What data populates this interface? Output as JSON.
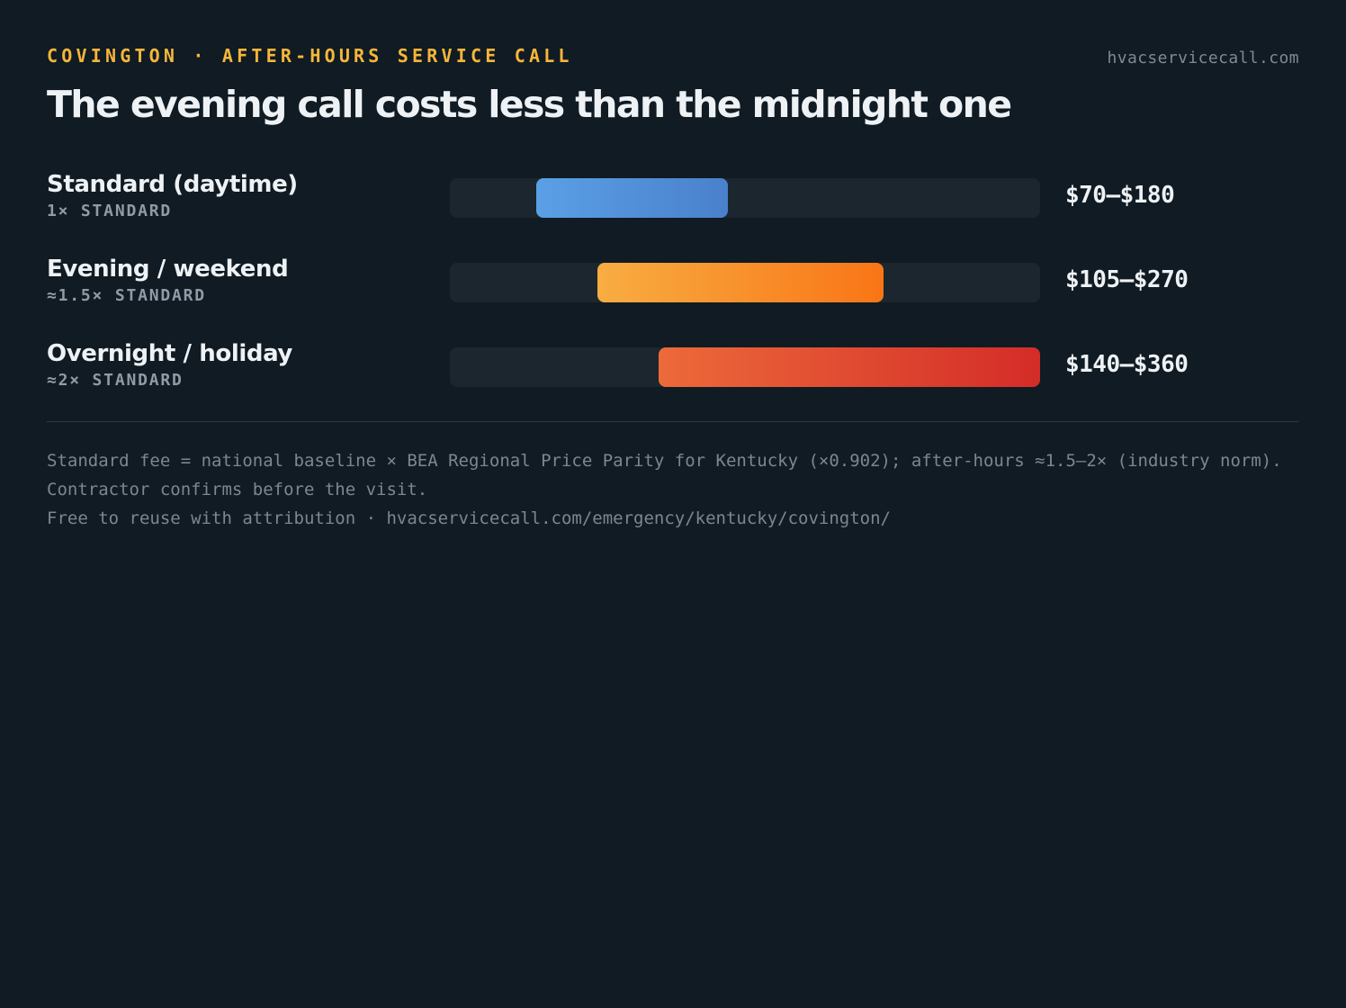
{
  "header": {
    "eyebrow": "COVINGTON · AFTER-HOURS SERVICE CALL",
    "site": "hvacservicecall.com",
    "title": "The evening call costs less than the midnight one"
  },
  "chart_data": {
    "type": "bar",
    "orientation": "horizontal",
    "subtype": "range",
    "axis_range": [
      20,
      360
    ],
    "categories": [
      "Standard (daytime)",
      "Evening / weekend",
      "Overnight / holiday"
    ],
    "series": [
      {
        "sub": "1× STANDARD",
        "min": 70,
        "max": 180,
        "value_label": "$70–$180",
        "colors": [
          "#5aa0e6",
          "#4a80cc"
        ]
      },
      {
        "sub": "≈1.5× STANDARD",
        "min": 105,
        "max": 270,
        "value_label": "$105–$270",
        "colors": [
          "#f8ad42",
          "#f97516"
        ]
      },
      {
        "sub": "≈2× STANDARD",
        "min": 140,
        "max": 360,
        "value_label": "$140–$360",
        "colors": [
          "#ec6a3a",
          "#d42c28"
        ]
      }
    ],
    "grid": false,
    "legend": "none"
  },
  "footer": {
    "note_line1": "Standard fee = national baseline × BEA Regional Price Parity for Kentucky (×0.902); after-hours ≈1.5–2× (industry norm). Contractor confirms before the visit.",
    "note_line2": "Free to reuse with attribution · hvacservicecall.com/emergency/kentucky/covington/"
  }
}
